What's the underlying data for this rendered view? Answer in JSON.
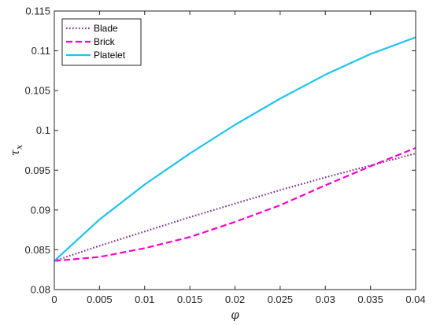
{
  "chart_data": {
    "type": "line",
    "title": "",
    "xlabel": "φ",
    "ylabel": "τ",
    "ylabel_subscript": "x",
    "xlim": [
      0,
      0.04
    ],
    "ylim": [
      0.08,
      0.115
    ],
    "x_ticks": [
      0,
      0.005,
      0.01,
      0.015,
      0.02,
      0.025,
      0.03,
      0.035,
      0.04
    ],
    "x_tick_labels": [
      "0",
      "0.005",
      "0.01",
      "0.015",
      "0.02",
      "0.025",
      "0.03",
      "0.035",
      "0.04"
    ],
    "y_ticks": [
      0.08,
      0.085,
      0.09,
      0.095,
      0.1,
      0.105,
      0.11,
      0.115
    ],
    "y_tick_labels": [
      "0.08",
      "0.085",
      "0.09",
      "0.095",
      "0.1",
      "0.105",
      "0.11",
      "0.115"
    ],
    "grid": false,
    "legend_position": "top-left",
    "series": [
      {
        "name": "Blade",
        "color": "#7E2F8E",
        "style": "dotted",
        "x": [
          0,
          0.005,
          0.01,
          0.015,
          0.02,
          0.025,
          0.03,
          0.035,
          0.04
        ],
        "y": [
          0.0836,
          0.0855,
          0.0873,
          0.0891,
          0.0908,
          0.0925,
          0.0941,
          0.0956,
          0.0971
        ]
      },
      {
        "name": "Brick",
        "color": "#FF00CC",
        "style": "dashed",
        "x": [
          0,
          0.005,
          0.01,
          0.015,
          0.02,
          0.025,
          0.03,
          0.035,
          0.04
        ],
        "y": [
          0.0836,
          0.0841,
          0.0852,
          0.0866,
          0.0885,
          0.0906,
          0.0931,
          0.0955,
          0.0978
        ]
      },
      {
        "name": "Platelet",
        "color": "#1EC3F0",
        "style": "solid",
        "x": [
          0,
          0.005,
          0.01,
          0.015,
          0.02,
          0.025,
          0.03,
          0.035,
          0.04
        ],
        "y": [
          0.0836,
          0.0888,
          0.0932,
          0.0971,
          0.1007,
          0.104,
          0.107,
          0.1096,
          0.1117
        ]
      }
    ]
  }
}
